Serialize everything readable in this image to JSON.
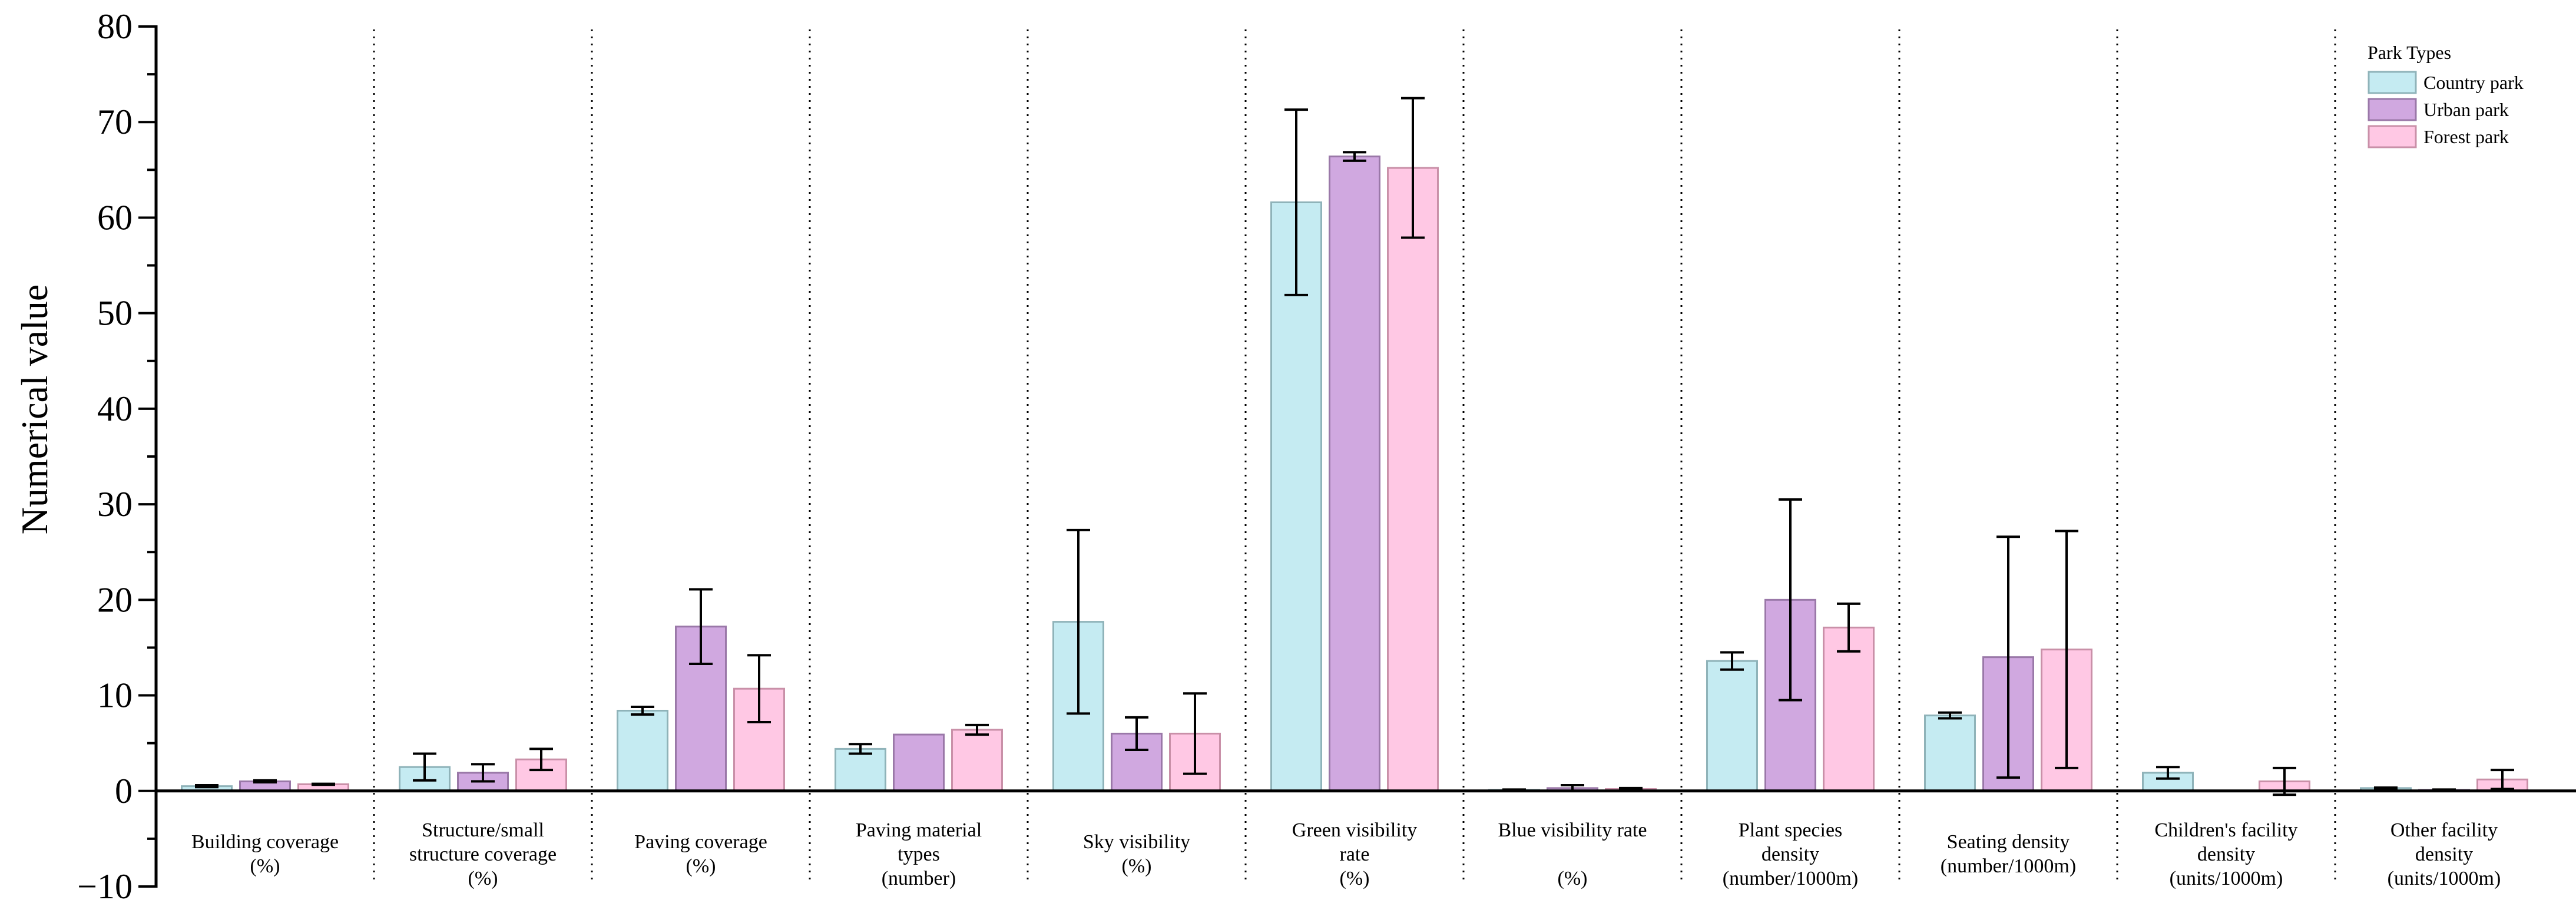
{
  "chart_data": {
    "type": "bar",
    "title": "",
    "xlabel": "",
    "ylabel": "Numerical value",
    "ylim": [
      -10,
      80
    ],
    "yticks": [
      -10,
      0,
      10,
      20,
      30,
      40,
      50,
      60,
      70,
      80
    ],
    "grid": false,
    "legend": {
      "title": "Park Types",
      "placement": "top-right"
    },
    "categories": [
      [
        "Building coverage",
        "(%)"
      ],
      [
        "Structure/small",
        "structure coverage",
        "(%)"
      ],
      [
        "Paving coverage",
        "(%)"
      ],
      [
        "Paving material",
        "types",
        "(number)"
      ],
      [
        "Sky visibility",
        "(%)"
      ],
      [
        "Green visibility",
        "rate",
        "(%)"
      ],
      [
        "Blue visibility rate",
        "",
        "(%)"
      ],
      [
        "Plant species",
        "density",
        "(number/1000m)"
      ],
      [
        "Seating density",
        "(number/1000m)"
      ],
      [
        "Children's facility",
        "density",
        "(units/1000m)"
      ],
      [
        "Other facility",
        "density",
        "(units/1000m)"
      ]
    ],
    "series": [
      {
        "name": "Country park",
        "color": "#c5ebf2",
        "stroke": "#8fb3b9",
        "values": [
          0.5,
          2.5,
          8.4,
          4.4,
          17.7,
          61.6,
          0.1,
          13.6,
          7.9,
          1.9,
          0.3
        ],
        "errors": [
          0.1,
          1.4,
          0.4,
          0.5,
          9.6,
          9.7,
          0.05,
          0.9,
          0.3,
          0.6,
          0.05
        ]
      },
      {
        "name": "Urban park",
        "color": "#d0a8e0",
        "stroke": "#9a78a8",
        "values": [
          1.0,
          1.9,
          17.2,
          5.9,
          6.0,
          66.4,
          0.3,
          20.0,
          14.0,
          0.0,
          0.1
        ],
        "errors": [
          0.1,
          0.9,
          3.9,
          0.0,
          1.7,
          0.45,
          0.3,
          10.5,
          12.6,
          0.0,
          0.05
        ]
      },
      {
        "name": "Forest park",
        "color": "#ffc8e4",
        "stroke": "#c990a8",
        "values": [
          0.7,
          3.3,
          10.7,
          6.4,
          6.0,
          65.2,
          0.2,
          17.1,
          14.8,
          1.0,
          1.2
        ],
        "errors": [
          0.05,
          1.1,
          3.5,
          0.5,
          4.2,
          7.3,
          0.1,
          2.5,
          12.4,
          1.4,
          1.0
        ]
      }
    ]
  }
}
